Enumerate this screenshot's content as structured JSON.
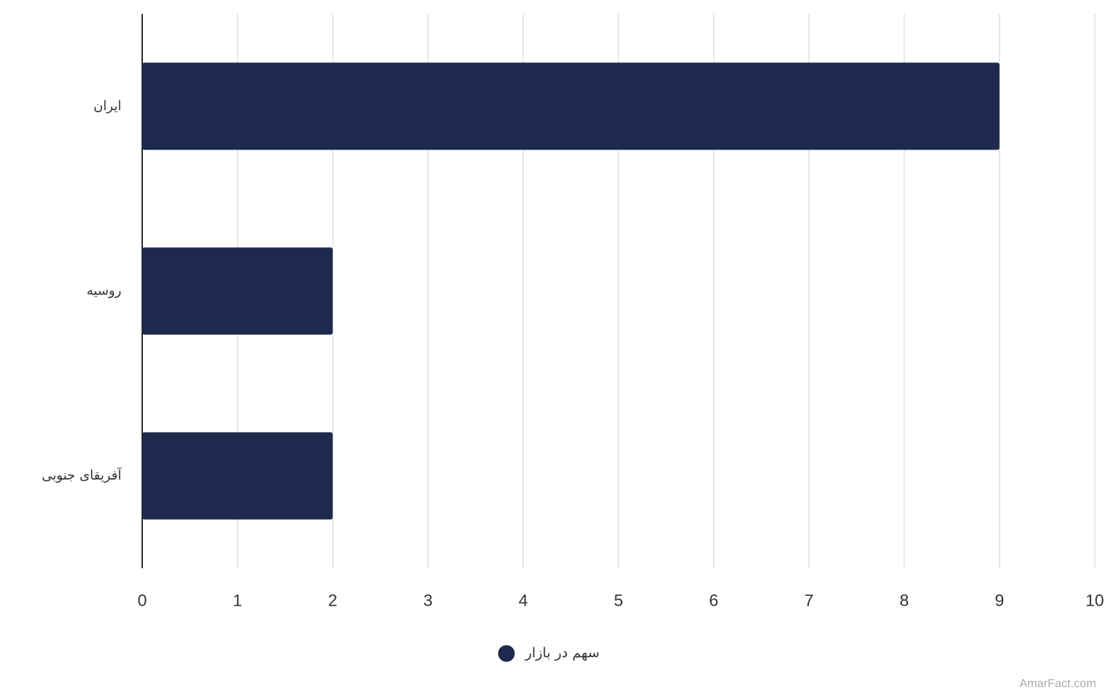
{
  "chart_data": {
    "type": "bar",
    "orientation": "horizontal",
    "categories": [
      "ایران",
      "روسیه",
      "آفریقای جنوبی"
    ],
    "series": [
      {
        "name": "سهم در بازار",
        "color": "#1e2a4d",
        "values": [
          9,
          2,
          2
        ]
      }
    ],
    "xlim": [
      0,
      10
    ],
    "xticks": [
      0,
      1,
      2,
      3,
      4,
      5,
      6,
      7,
      8,
      9,
      10
    ],
    "grid": true,
    "legend": "bottom",
    "source": "AmarFact.com"
  }
}
